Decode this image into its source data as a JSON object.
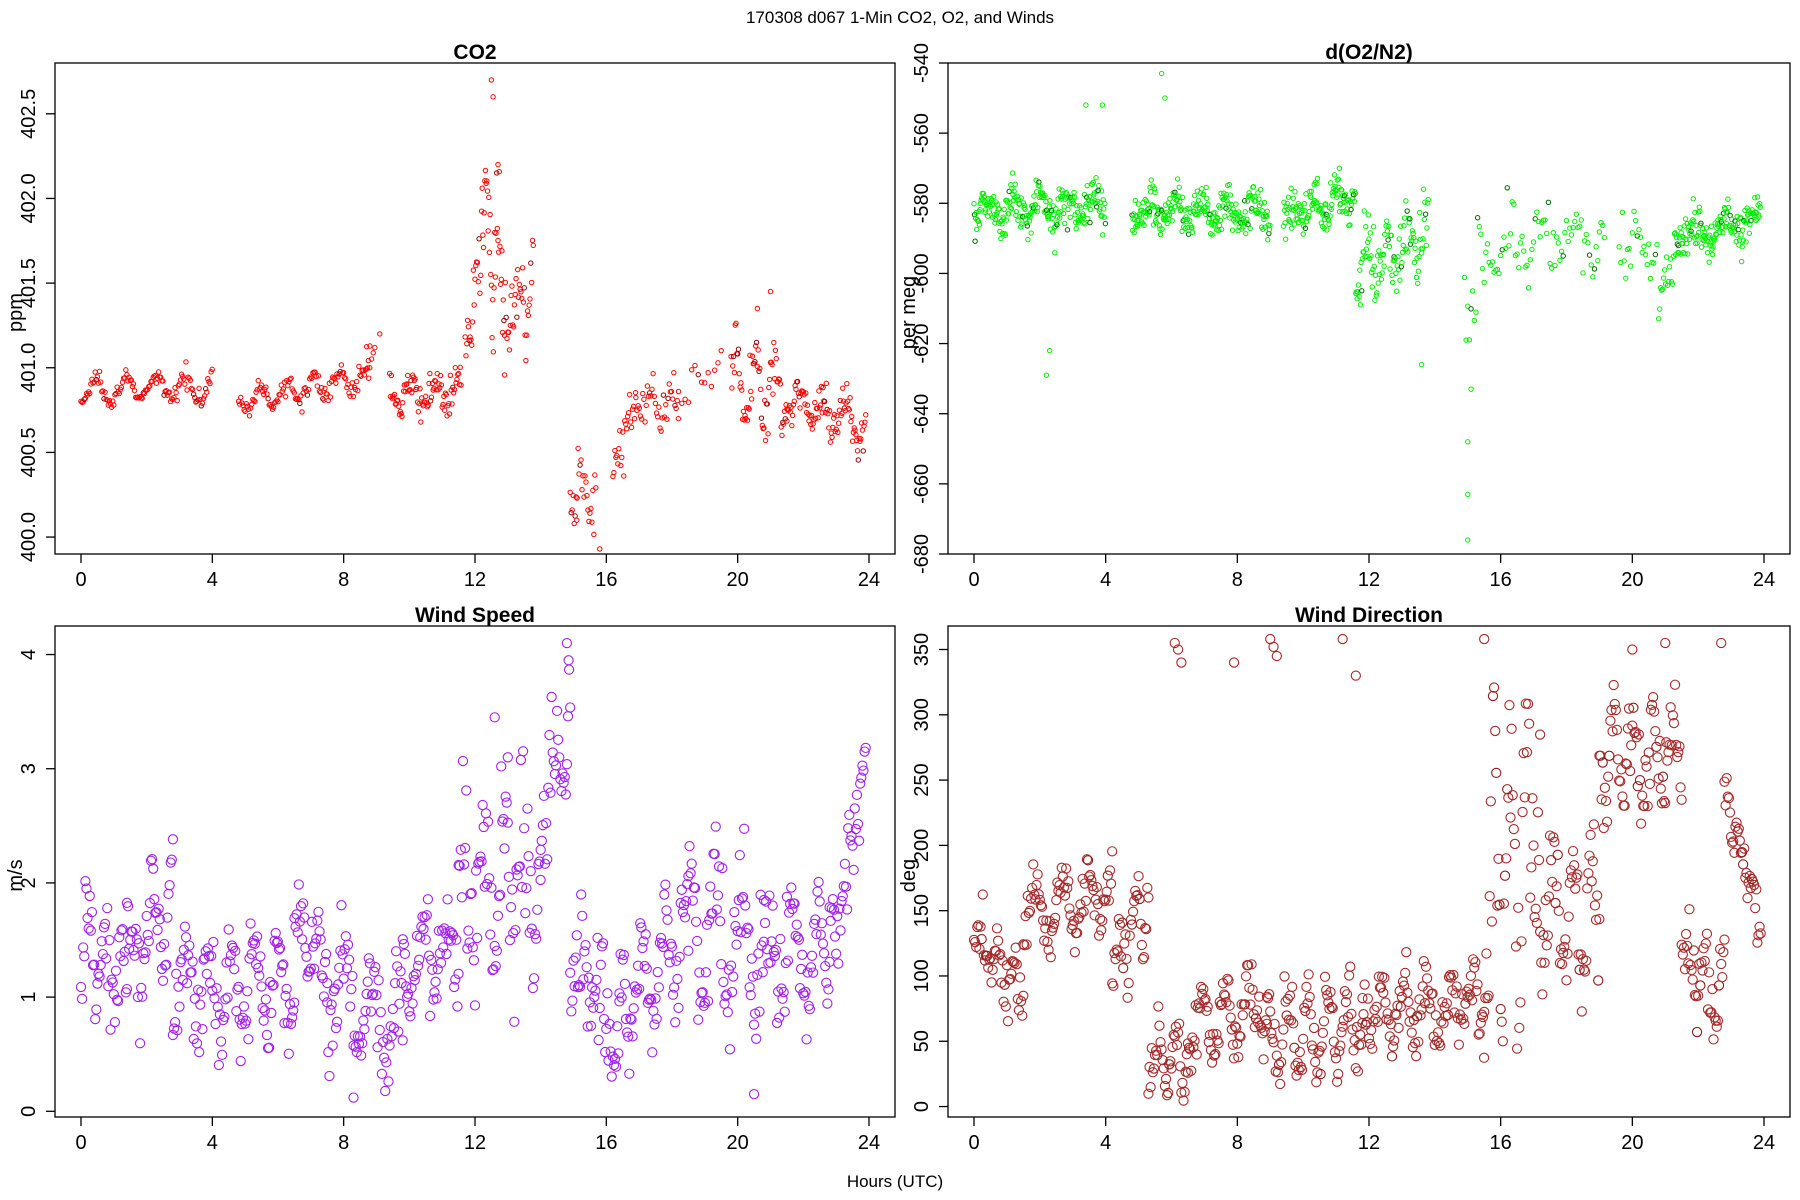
{
  "figure": {
    "title": "170308   d067   1-Min CO2, O2, and Winds",
    "xlabel": "Hours (UTC)"
  },
  "chart_data": [
    {
      "id": "co2",
      "type": "scatter",
      "title": "CO2",
      "xlabel": "",
      "ylabel": "ppm",
      "xlim": [
        0,
        24
      ],
      "ylim": [
        399.9,
        402.8
      ],
      "xticks": [
        0,
        4,
        8,
        12,
        16,
        20,
        24
      ],
      "yticks": [
        400.0,
        400.5,
        401.0,
        401.5,
        402.0,
        402.5
      ],
      "ytick_labels": [
        "400.0",
        "400.5",
        "401.0",
        "401.5",
        "402.0",
        "402.5"
      ],
      "color": "#ff0000",
      "dark_color": "#8b0000",
      "marker_size": "small",
      "grid": false,
      "segments": [
        {
          "x0": 0.0,
          "x1": 4.0,
          "step": 0.0333,
          "base": 400.87,
          "trend": 0.02,
          "amp": 0.07,
          "per": 0.9,
          "noise": 0.04
        },
        {
          "x0": 4.8,
          "x1": 8.8,
          "step": 0.0333,
          "base": 400.8,
          "trend": 0.15,
          "amp": 0.07,
          "per": 0.8,
          "noise": 0.05
        },
        {
          "x0": 8.7,
          "x1": 9.0,
          "step": 0.05,
          "base": 401.05,
          "trend": 0.1,
          "amp": 0.05,
          "per": 0.5,
          "noise": 0.06
        },
        {
          "x0": 9.4,
          "x1": 11.6,
          "step": 0.025,
          "base": 400.85,
          "trend": 0.0,
          "amp": 0.08,
          "per": 0.7,
          "noise": 0.08
        },
        {
          "x0": 11.7,
          "x1": 12.2,
          "step": 0.025,
          "base": 401.15,
          "trend": 0.55,
          "amp": 0.1,
          "per": 0.4,
          "noise": 0.18
        },
        {
          "x0": 12.2,
          "x1": 12.9,
          "step": 0.02,
          "base": 401.9,
          "trend": -0.4,
          "amp": 0.25,
          "per": 0.4,
          "noise": 0.3
        },
        {
          "x0": 12.9,
          "x1": 13.8,
          "step": 0.025,
          "base": 401.3,
          "trend": 0.25,
          "amp": 0.15,
          "per": 0.5,
          "noise": 0.22
        },
        {
          "x0": 14.9,
          "x1": 15.7,
          "step": 0.03,
          "base": 400.3,
          "trend": -0.05,
          "amp": 0.08,
          "per": 0.5,
          "noise": 0.13
        },
        {
          "x0": 16.2,
          "x1": 16.9,
          "step": 0.03,
          "base": 400.35,
          "trend": 0.5,
          "amp": 0.06,
          "per": 0.4,
          "noise": 0.13
        },
        {
          "x0": 16.9,
          "x1": 18.2,
          "step": 0.035,
          "base": 400.8,
          "trend": -0.05,
          "amp": 0.1,
          "per": 0.6,
          "noise": 0.1
        },
        {
          "x0": 18.2,
          "x1": 19.6,
          "step": 0.1,
          "base": 400.9,
          "trend": 0.1,
          "amp": 0.08,
          "per": 0.8,
          "noise": 0.08
        },
        {
          "x0": 19.8,
          "x1": 21.5,
          "step": 0.025,
          "base": 400.95,
          "trend": -0.1,
          "amp": 0.2,
          "per": 0.6,
          "noise": 0.16
        },
        {
          "x0": 21.5,
          "x1": 23.9,
          "step": 0.025,
          "base": 400.82,
          "trend": -0.15,
          "amp": 0.1,
          "per": 0.7,
          "noise": 0.1
        }
      ],
      "outliers": [
        [
          12.5,
          402.7
        ],
        [
          12.55,
          402.6
        ],
        [
          12.7,
          402.2
        ],
        [
          15.8,
          399.93
        ],
        [
          15.1,
          400.1
        ],
        [
          21.0,
          401.45
        ],
        [
          20.6,
          401.35
        ],
        [
          9.1,
          401.2
        ]
      ]
    },
    {
      "id": "o2",
      "type": "scatter",
      "title": "d(O2/N2)",
      "xlabel": "",
      "ylabel": "per meg",
      "xlim": [
        0,
        24
      ],
      "ylim": [
        -680,
        -540
      ],
      "xticks": [
        0,
        4,
        8,
        12,
        16,
        20,
        24
      ],
      "yticks": [
        -680,
        -660,
        -640,
        -620,
        -600,
        -580,
        -560,
        -540
      ],
      "ytick_labels": [
        "-680",
        "-660",
        "-640",
        "-620",
        "-600",
        "-580",
        "-560",
        "-540"
      ],
      "color": "#00ee00",
      "dark_color": "#006400",
      "marker_size": "small",
      "grid": false,
      "segments": [
        {
          "x0": 0.0,
          "x1": 4.0,
          "step": 0.0167,
          "base": -582,
          "trend": 2,
          "amp": 3,
          "per": 0.8,
          "noise": 5
        },
        {
          "x0": 4.8,
          "x1": 9.0,
          "step": 0.0167,
          "base": -582,
          "trend": -1,
          "amp": 3,
          "per": 0.8,
          "noise": 4.5
        },
        {
          "x0": 9.4,
          "x1": 11.6,
          "step": 0.0167,
          "base": -584,
          "trend": 6,
          "amp": 3,
          "per": 0.7,
          "noise": 4.5
        },
        {
          "x0": 11.6,
          "x1": 13.8,
          "step": 0.02,
          "base": -598,
          "trend": 8,
          "amp": 6,
          "per": 0.6,
          "noise": 8
        },
        {
          "x0": 14.9,
          "x1": 15.3,
          "step": 0.05,
          "base": -615,
          "trend": 10,
          "amp": 3,
          "per": 0.4,
          "noise": 10
        },
        {
          "x0": 15.3,
          "x1": 19.2,
          "step": 0.05,
          "base": -593,
          "trend": 4,
          "amp": 5,
          "per": 1.0,
          "noise": 6
        },
        {
          "x0": 19.6,
          "x1": 20.8,
          "step": 0.05,
          "base": -592,
          "trend": 0,
          "amp": 4,
          "per": 0.8,
          "noise": 6
        },
        {
          "x0": 20.8,
          "x1": 21.3,
          "step": 0.03,
          "base": -612,
          "trend": 20,
          "amp": 3,
          "per": 0.5,
          "noise": 6
        },
        {
          "x0": 21.3,
          "x1": 23.9,
          "step": 0.0167,
          "base": -589,
          "trend": 4,
          "amp": 3,
          "per": 0.9,
          "noise": 4.5
        }
      ],
      "outliers": [
        [
          5.7,
          -543
        ],
        [
          5.8,
          -550
        ],
        [
          3.4,
          -552
        ],
        [
          3.9,
          -552
        ],
        [
          2.2,
          -629
        ],
        [
          2.3,
          -622
        ],
        [
          15.0,
          -676
        ],
        [
          15.0,
          -663
        ],
        [
          15.0,
          -648
        ],
        [
          15.1,
          -633
        ],
        [
          13.6,
          -626
        ],
        [
          11.1,
          -570
        ]
      ]
    },
    {
      "id": "wind-speed",
      "type": "scatter",
      "title": "Wind Speed",
      "xlabel": "",
      "ylabel": "m/s",
      "xlim": [
        0,
        24
      ],
      "ylim": [
        -0.05,
        4.25
      ],
      "xticks": [
        0,
        4,
        8,
        12,
        16,
        20,
        24
      ],
      "yticks": [
        0,
        1,
        2,
        3,
        4
      ],
      "ytick_labels": [
        "0",
        "1",
        "2",
        "3",
        "4"
      ],
      "color": "#a020f0",
      "dark_color": "#a020f0",
      "marker_size": "large",
      "grid": false,
      "segments": [
        {
          "x0": 0.0,
          "x1": 1.4,
          "step": 0.0333,
          "base": 1.5,
          "trend": -0.3,
          "amp": 0.3,
          "per": 0.5,
          "noise": 0.35
        },
        {
          "x0": 1.4,
          "x1": 2.8,
          "step": 0.0333,
          "base": 1.3,
          "trend": 0.6,
          "amp": 0.4,
          "per": 0.7,
          "noise": 0.3
        },
        {
          "x0": 2.8,
          "x1": 6.5,
          "step": 0.0333,
          "base": 1.1,
          "trend": 0.0,
          "amp": 0.35,
          "per": 0.7,
          "noise": 0.35
        },
        {
          "x0": 6.5,
          "x1": 7.5,
          "step": 0.0333,
          "base": 1.6,
          "trend": -0.3,
          "amp": 0.2,
          "per": 0.5,
          "noise": 0.25
        },
        {
          "x0": 7.5,
          "x1": 9.8,
          "step": 0.0333,
          "base": 1.1,
          "trend": -0.4,
          "amp": 0.4,
          "per": 0.8,
          "noise": 0.35
        },
        {
          "x0": 9.8,
          "x1": 11.5,
          "step": 0.0333,
          "base": 1.3,
          "trend": 0.2,
          "amp": 0.3,
          "per": 0.7,
          "noise": 0.3
        },
        {
          "x0": 11.5,
          "x1": 14.0,
          "step": 0.0333,
          "base": 2.0,
          "trend": 0.0,
          "amp": 0.5,
          "per": 0.6,
          "noise": 0.55
        },
        {
          "x0": 14.0,
          "x1": 14.9,
          "step": 0.0333,
          "base": 2.6,
          "trend": 0.8,
          "amp": 0.4,
          "per": 0.5,
          "noise": 0.45
        },
        {
          "x0": 14.9,
          "x1": 16.4,
          "step": 0.0333,
          "base": 1.4,
          "trend": -0.8,
          "amp": 0.3,
          "per": 0.6,
          "noise": 0.4
        },
        {
          "x0": 16.4,
          "x1": 18.5,
          "step": 0.0333,
          "base": 0.9,
          "trend": 0.6,
          "amp": 0.35,
          "per": 0.7,
          "noise": 0.35
        },
        {
          "x0": 18.5,
          "x1": 20.8,
          "step": 0.0333,
          "base": 1.6,
          "trend": -0.2,
          "amp": 0.5,
          "per": 0.8,
          "noise": 0.4
        },
        {
          "x0": 20.8,
          "x1": 22.8,
          "step": 0.0333,
          "base": 1.3,
          "trend": 0.0,
          "amp": 0.5,
          "per": 0.8,
          "noise": 0.35
        },
        {
          "x0": 22.8,
          "x1": 23.9,
          "step": 0.0333,
          "base": 1.4,
          "trend": 1.6,
          "amp": 0.2,
          "per": 0.5,
          "noise": 0.3
        }
      ],
      "outliers": [
        [
          14.8,
          4.1
        ],
        [
          14.85,
          3.95
        ],
        [
          8.3,
          0.12
        ],
        [
          20.5,
          0.15
        ],
        [
          12.6,
          3.45
        ],
        [
          13.0,
          3.1
        ]
      ]
    },
    {
      "id": "wind-direction",
      "type": "scatter",
      "title": "Wind Direction",
      "xlabel": "",
      "ylabel": "deg",
      "xlim": [
        0,
        24
      ],
      "ylim": [
        -8,
        368
      ],
      "xticks": [
        0,
        4,
        8,
        12,
        16,
        20,
        24
      ],
      "yticks": [
        0,
        50,
        100,
        150,
        200,
        250,
        300,
        350
      ],
      "ytick_labels": [
        "0",
        "50",
        "100",
        "150",
        "200",
        "250",
        "300",
        "350"
      ],
      "color": "#a52a2a",
      "dark_color": "#8b1a1a",
      "marker_size": "large",
      "grid": false,
      "segments": [
        {
          "x0": 0.0,
          "x1": 1.5,
          "step": 0.0333,
          "base": 130,
          "trend": -40,
          "amp": 15,
          "per": 0.5,
          "noise": 18
        },
        {
          "x0": 1.5,
          "x1": 4.2,
          "step": 0.0333,
          "base": 145,
          "trend": 20,
          "amp": 20,
          "per": 0.8,
          "noise": 14
        },
        {
          "x0": 4.2,
          "x1": 5.3,
          "step": 0.0333,
          "base": 110,
          "trend": 40,
          "amp": 20,
          "per": 0.5,
          "noise": 20
        },
        {
          "x0": 5.3,
          "x1": 6.5,
          "step": 0.0333,
          "base": 45,
          "trend": -10,
          "amp": 15,
          "per": 0.5,
          "noise": 18
        },
        {
          "x0": 6.5,
          "x1": 8.9,
          "step": 0.0333,
          "base": 65,
          "trend": 10,
          "amp": 20,
          "per": 0.7,
          "noise": 20
        },
        {
          "x0": 8.9,
          "x1": 11.8,
          "step": 0.0333,
          "base": 55,
          "trend": 10,
          "amp": 25,
          "per": 0.6,
          "noise": 22
        },
        {
          "x0": 11.8,
          "x1": 15.5,
          "step": 0.0333,
          "base": 75,
          "trend": 0,
          "amp": 20,
          "per": 0.7,
          "noise": 20
        },
        {
          "x0": 15.5,
          "x1": 17.2,
          "step": 0.0333,
          "base": 150,
          "trend": 80,
          "amp": 80,
          "per": 0.5,
          "noise": 60
        },
        {
          "x0": 17.2,
          "x1": 19.0,
          "step": 0.0333,
          "base": 155,
          "trend": -20,
          "amp": 40,
          "per": 0.6,
          "noise": 30
        },
        {
          "x0": 19.0,
          "x1": 21.5,
          "step": 0.0333,
          "base": 280,
          "trend": -20,
          "amp": 30,
          "per": 0.6,
          "noise": 30
        },
        {
          "x0": 21.5,
          "x1": 22.8,
          "step": 0.0333,
          "base": 120,
          "trend": -40,
          "amp": 20,
          "per": 0.5,
          "noise": 25
        },
        {
          "x0": 22.8,
          "x1": 23.9,
          "step": 0.0333,
          "base": 240,
          "trend": -100,
          "amp": 10,
          "per": 0.4,
          "noise": 15
        }
      ],
      "outliers": [
        [
          6.1,
          355
        ],
        [
          6.2,
          350
        ],
        [
          9.0,
          358
        ],
        [
          9.1,
          352
        ],
        [
          9.2,
          345
        ],
        [
          15.5,
          358
        ],
        [
          11.2,
          358
        ],
        [
          22.7,
          355
        ],
        [
          20.0,
          350
        ],
        [
          21.0,
          355
        ],
        [
          6.3,
          340
        ],
        [
          7.9,
          340
        ],
        [
          11.6,
          330
        ]
      ]
    }
  ]
}
